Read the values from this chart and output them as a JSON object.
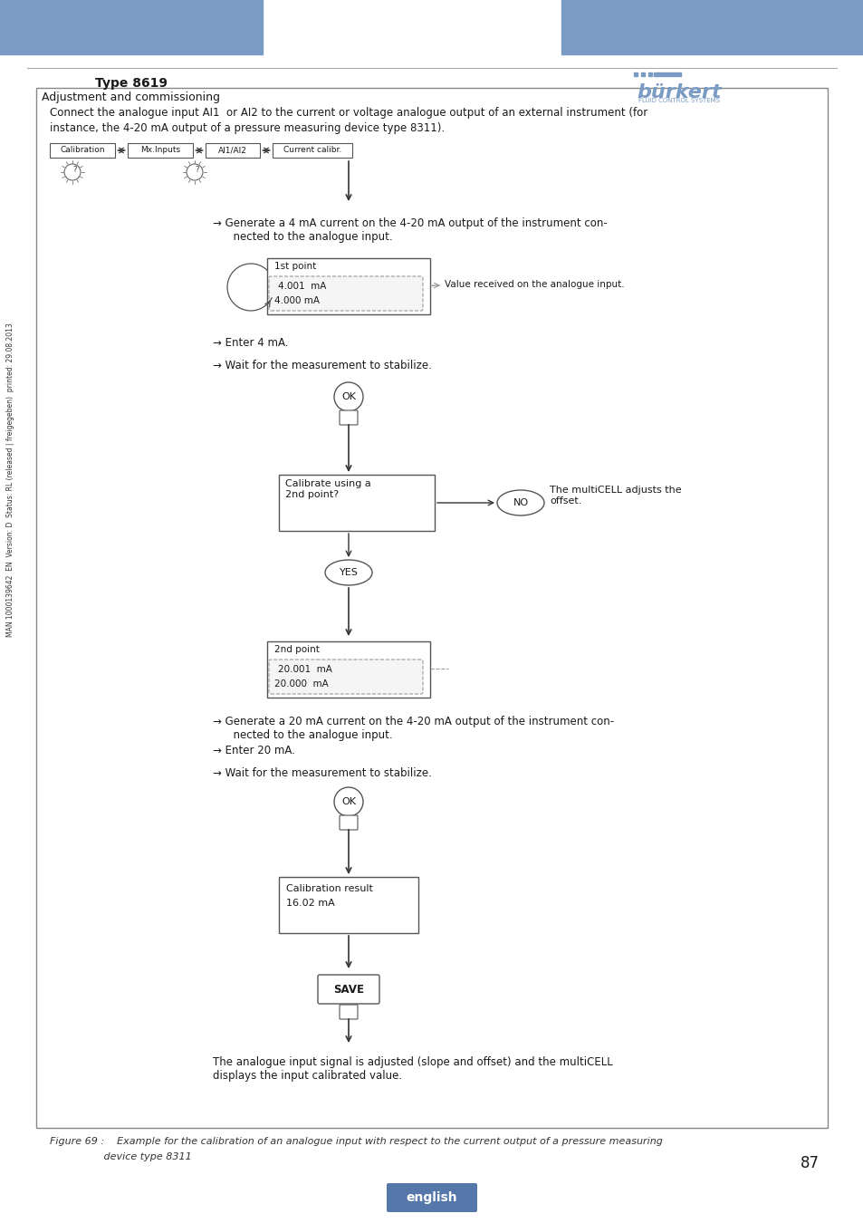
{
  "header_color": "#7a9cc4",
  "title": "Type 8619",
  "subtitle": "Adjustment and commissioning",
  "page_number": "87",
  "lang_button": "english",
  "sidebar_text": "MAN 1000139642  EN  Version: D  Status: RL (released | freigegeben)  printed: 29.08.2013",
  "box_intro_text1": "Connect the analogue input AI1  or AI2 to the current or voltage analogue output of an external instrument (for",
  "box_intro_text2": "instance, the 4-20 mA output of a pressure measuring device type 8311).",
  "nav_items": [
    "Calibration",
    "Mx.Inputs",
    "AI1/AI2",
    "Current calibr."
  ],
  "arrow1_text": "→ Generate a 4 mA current on the 4-20 mA output of the instrument con-\n      nected to the analogue input.",
  "box1_title": "1st point",
  "box1_line1": "4.001  mA",
  "box1_line2": "4.000 mA",
  "box1_note": "Value received on the analogue input.",
  "arrow2_text": "→ Enter 4 mA.",
  "arrow3_text": "→ Wait for the measurement to stabilize.",
  "ok_label": "OK",
  "decision_box": "Calibrate using a\n2nd point?",
  "no_label": "NO",
  "no_text": "The multiCELL adjusts the\noffset.",
  "yes_label": "YES",
  "box2_title": "2nd point",
  "box2_line1": "20.001  mA",
  "box2_line2": "20.000  mA",
  "arrow4_text": "→ Generate a 20 mA current on the 4-20 mA output of the instrument con-\n      nected to the analogue input.",
  "arrow5_text": "→ Enter 20 mA.",
  "arrow6_text": "→ Wait for the measurement to stabilize.",
  "ok2_label": "OK",
  "result_box_line1": "Calibration result",
  "result_box_line2": "16.02 mA",
  "save_label": "SAVE",
  "final_text": "The analogue input signal is adjusted (slope and offset) and the multiCELL\ndisplays the input calibrated value.",
  "figure_caption1": "Figure 69 :    Example for the calibration of an analogue input with respect to the current output of a pressure measuring",
  "figure_caption2": "                 device type 8311",
  "bg_color": "#ffffff",
  "box_border_color": "#555555",
  "text_color": "#1a1a1a",
  "nav_bg": "#ffffff",
  "dashed_color": "#999999"
}
